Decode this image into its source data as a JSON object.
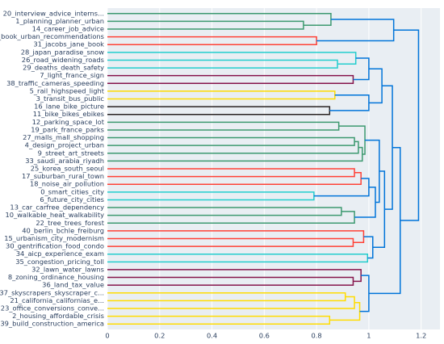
{
  "chart_data": {
    "type": "dendrogram",
    "orientation": "horizontal",
    "xlim": [
      0,
      1.272
    ],
    "xticks": [
      0,
      0.2,
      0.4,
      0.6,
      0.8,
      1,
      1.2
    ],
    "ylim": [
      0,
      410
    ],
    "yticks": [
      {
        "value": 5,
        "label": "20_interview_advice_interns..."
      },
      {
        "value": 15,
        "label": "1_planning_planner_urban"
      },
      {
        "value": 25,
        "label": "14_career_job_advice"
      },
      {
        "value": 35,
        "label": "24_book_urban_recommendations"
      },
      {
        "value": 45,
        "label": "31_jacobs_jane_book"
      },
      {
        "value": 55,
        "label": "28_japan_paradise_snow"
      },
      {
        "value": 65,
        "label": "26_road_widening_roads"
      },
      {
        "value": 75,
        "label": "29_deaths_death_safety"
      },
      {
        "value": 85,
        "label": "7_light_france_sign"
      },
      {
        "value": 95,
        "label": "38_traffic_cameras_speeding"
      },
      {
        "value": 105,
        "label": "5_rail_highspeed_light"
      },
      {
        "value": 115,
        "label": "3_transit_bus_public"
      },
      {
        "value": 125,
        "label": "16_lane_bike_picture"
      },
      {
        "value": 135,
        "label": "11_bike_bikes_ebikes"
      },
      {
        "value": 145,
        "label": "12_parking_space_lot"
      },
      {
        "value": 155,
        "label": "19_park_france_parks"
      },
      {
        "value": 165,
        "label": "27_malls_mall_shopping"
      },
      {
        "value": 175,
        "label": "4_design_project_urban"
      },
      {
        "value": 185,
        "label": "9_street_art_streets"
      },
      {
        "value": 195,
        "label": "33_saudi_arabia_riyadh"
      },
      {
        "value": 205,
        "label": "25_korea_south_seoul"
      },
      {
        "value": 215,
        "label": "17_suburban_rural_town"
      },
      {
        "value": 225,
        "label": "18_noise_air_pollution"
      },
      {
        "value": 235,
        "label": "0_smart_cities_city"
      },
      {
        "value": 245,
        "label": "6_future_city_cities"
      },
      {
        "value": 255,
        "label": "13_car_carfree_dependency"
      },
      {
        "value": 265,
        "label": "10_walkable_heat_walkability"
      },
      {
        "value": 275,
        "label": "22_tree_trees_forest"
      },
      {
        "value": 285,
        "label": "40_berlin_bchle_freiburg"
      },
      {
        "value": 295,
        "label": "15_urbanism_city_modernism"
      },
      {
        "value": 305,
        "label": "30_gentrification_food_condo"
      },
      {
        "value": 315,
        "label": "34_aicp_experience_exam"
      },
      {
        "value": 325,
        "label": "35_congestion_pricing_toll"
      },
      {
        "value": 335,
        "label": "32_lawn_water_lawns"
      },
      {
        "value": 345,
        "label": "8_zoning_ordinance_housing"
      },
      {
        "value": 355,
        "label": "36_land_tax_value"
      },
      {
        "value": 365,
        "label": "37_skyscrapers_skyscraper_c..."
      },
      {
        "value": 375,
        "label": "21_california_californias_e..."
      },
      {
        "value": 385,
        "label": "23_office_conversions_conve..."
      },
      {
        "value": 395,
        "label": "2_housing_affordable_crisis"
      },
      {
        "value": 405,
        "label": "39_build_construction_america"
      }
    ],
    "links": [
      {
        "y": [
          15,
          15,
          25,
          25
        ],
        "x": [
          0,
          0.75,
          0.75,
          0
        ],
        "color": "rgb(61,153,112)"
      },
      {
        "y": [
          5,
          5,
          20,
          20
        ],
        "x": [
          0,
          0.855,
          0.855,
          0.75
        ],
        "color": "rgb(61,153,112)"
      },
      {
        "y": [
          35,
          35,
          45,
          45
        ],
        "x": [
          0,
          0.8,
          0.8,
          0
        ],
        "color": "rgb(255,65,54)"
      },
      {
        "y": [
          12.5,
          12.5,
          40,
          40
        ],
        "x": [
          0.855,
          1.095,
          1.095,
          0.8
        ],
        "color": "rgb(0,116,217)"
      },
      {
        "y": [
          65,
          65,
          75,
          75
        ],
        "x": [
          0,
          0.88,
          0.88,
          0
        ],
        "color": "rgb(35,205,205)"
      },
      {
        "y": [
          55,
          55,
          70,
          70
        ],
        "x": [
          0,
          0.95,
          0.95,
          0.88
        ],
        "color": "rgb(35,205,205)"
      },
      {
        "y": [
          85,
          85,
          95,
          95
        ],
        "x": [
          0,
          0.94,
          0.94,
          0
        ],
        "color": "rgb(133,20,75)"
      },
      {
        "y": [
          62.5,
          62.5,
          90,
          90
        ],
        "x": [
          0.95,
          1.0,
          1.0,
          0.94
        ],
        "color": "rgb(0,116,217)"
      },
      {
        "y": [
          105,
          105,
          115,
          115
        ],
        "x": [
          0,
          0.87,
          0.87,
          0
        ],
        "color": "rgb(255,220,0)"
      },
      {
        "y": [
          125,
          125,
          135,
          135
        ],
        "x": [
          0,
          0.85,
          0.85,
          0
        ],
        "color": "rgb(40,35,35)"
      },
      {
        "y": [
          110,
          110,
          130,
          130
        ],
        "x": [
          0.87,
          1.0,
          1.0,
          0.85
        ],
        "color": "rgb(0,116,217)"
      },
      {
        "y": [
          76.25,
          76.25,
          120,
          120
        ],
        "x": [
          1.0,
          1.05,
          1.05,
          1.0
        ],
        "color": "rgb(0,116,217)"
      },
      {
        "y": [
          145,
          145,
          155,
          155
        ],
        "x": [
          0,
          0.885,
          0.885,
          0
        ],
        "color": "rgb(61,153,112)"
      },
      {
        "y": [
          165,
          165,
          175,
          175
        ],
        "x": [
          0,
          0.945,
          0.945,
          0
        ],
        "color": "rgb(61,153,112)"
      },
      {
        "y": [
          170,
          170,
          185,
          185
        ],
        "x": [
          0.945,
          0.96,
          0.96,
          0
        ],
        "color": "rgb(61,153,112)"
      },
      {
        "y": [
          177.5,
          177.5,
          195,
          195
        ],
        "x": [
          0.96,
          0.975,
          0.975,
          0
        ],
        "color": "rgb(61,153,112)"
      },
      {
        "y": [
          150,
          150,
          186.25,
          186.25
        ],
        "x": [
          0.885,
          0.985,
          0.985,
          0.975
        ],
        "color": "rgb(61,153,112)"
      },
      {
        "y": [
          205,
          205,
          215,
          215
        ],
        "x": [
          0,
          0.945,
          0.945,
          0
        ],
        "color": "rgb(255,65,54)"
      },
      {
        "y": [
          210,
          210,
          225,
          225
        ],
        "x": [
          0.945,
          0.97,
          0.97,
          0
        ],
        "color": "rgb(255,65,54)"
      },
      {
        "y": [
          235,
          235,
          245,
          245
        ],
        "x": [
          0,
          0.79,
          0.79,
          0
        ],
        "color": "rgb(35,205,205)"
      },
      {
        "y": [
          217.5,
          217.5,
          240,
          240
        ],
        "x": [
          0.97,
          1.0,
          1.0,
          0.79
        ],
        "color": "rgb(0,116,217)"
      },
      {
        "y": [
          255,
          255,
          265,
          265
        ],
        "x": [
          0,
          0.895,
          0.895,
          0
        ],
        "color": "rgb(61,153,112)"
      },
      {
        "y": [
          260,
          260,
          275,
          275
        ],
        "x": [
          0.895,
          0.945,
          0.945,
          0
        ],
        "color": "rgb(61,153,112)"
      },
      {
        "y": [
          228.75,
          228.75,
          267.5,
          267.5
        ],
        "x": [
          1.0,
          1.025,
          1.025,
          0.945
        ],
        "color": "rgb(0,116,217)"
      },
      {
        "y": [
          168.125,
          168.125,
          248.125,
          248.125
        ],
        "x": [
          0.985,
          1.04,
          1.04,
          1.025
        ],
        "color": "rgb(0,116,217)"
      },
      {
        "y": [
          295,
          295,
          305,
          305
        ],
        "x": [
          0,
          0.94,
          0.94,
          0
        ],
        "color": "rgb(255,65,54)"
      },
      {
        "y": [
          285,
          285,
          300,
          300
        ],
        "x": [
          0,
          0.98,
          0.98,
          0.94
        ],
        "color": "rgb(255,65,54)"
      },
      {
        "y": [
          315,
          315,
          325,
          325
        ],
        "x": [
          0,
          0.995,
          0.995,
          0
        ],
        "color": "rgb(35,205,205)"
      },
      {
        "y": [
          292.5,
          292.5,
          320,
          320
        ],
        "x": [
          0.98,
          1.015,
          1.015,
          0.995
        ],
        "color": "rgb(0,116,217)"
      },
      {
        "y": [
          208.125,
          208.125,
          306.25,
          306.25
        ],
        "x": [
          1.04,
          1.06,
          1.06,
          1.015
        ],
        "color": "rgb(0,116,217)"
      },
      {
        "y": [
          98.125,
          98.125,
          257.1875,
          257.1875
        ],
        "x": [
          1.05,
          1.09,
          1.09,
          1.06
        ],
        "color": "rgb(0,116,217)"
      },
      {
        "y": [
          345,
          345,
          355,
          355
        ],
        "x": [
          0,
          0.94,
          0.94,
          0
        ],
        "color": "rgb(133,20,75)"
      },
      {
        "y": [
          335,
          335,
          350,
          350
        ],
        "x": [
          0,
          0.97,
          0.97,
          0.94
        ],
        "color": "rgb(133,20,75)"
      },
      {
        "y": [
          365,
          365,
          375,
          375
        ],
        "x": [
          0,
          0.91,
          0.91,
          0
        ],
        "color": "rgb(255,220,0)"
      },
      {
        "y": [
          370,
          370,
          385,
          385
        ],
        "x": [
          0.91,
          0.945,
          0.945,
          0
        ],
        "color": "rgb(255,220,0)"
      },
      {
        "y": [
          395,
          395,
          405,
          405
        ],
        "x": [
          0,
          0.85,
          0.85,
          0
        ],
        "color": "rgb(255,220,0)"
      },
      {
        "y": [
          377.5,
          377.5,
          400,
          400
        ],
        "x": [
          0.945,
          0.965,
          0.965,
          0.85
        ],
        "color": "rgb(255,220,0)"
      },
      {
        "y": [
          342.5,
          342.5,
          388.75,
          388.75
        ],
        "x": [
          0.97,
          1.0,
          1.0,
          0.965
        ],
        "color": "rgb(0,116,217)"
      },
      {
        "y": [
          177.65625,
          177.65625,
          365.625,
          365.625
        ],
        "x": [
          1.09,
          1.12,
          1.12,
          1.0
        ],
        "color": "rgb(0,116,217)"
      },
      {
        "y": [
          26.25,
          26.25,
          271.640625,
          271.640625
        ],
        "x": [
          1.095,
          1.19,
          1.19,
          1.12
        ],
        "color": "rgb(0,116,217)"
      }
    ]
  }
}
